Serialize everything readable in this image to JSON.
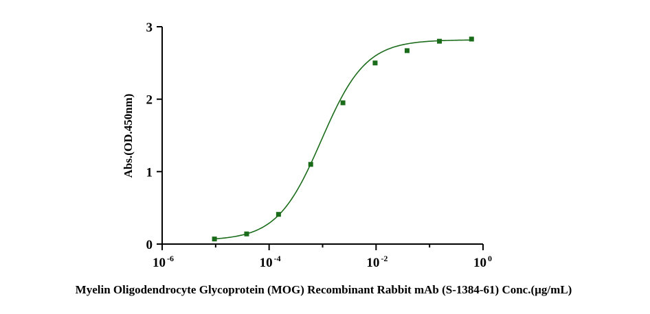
{
  "chart_data": {
    "type": "scatter",
    "xlabel": "Myelin Oligodendrocyte Glycoprotein (MOG) Recombinant Rabbit mAb (S-1384-61) Conc.(µg/mL)",
    "ylabel": "Abs.(OD.450nm)",
    "x_scale": "log10",
    "xlim": [
      1e-06,
      1
    ],
    "ylim": [
      0,
      3
    ],
    "x_ticks": [
      {
        "base": "10",
        "exp": "-6",
        "value": 1e-06
      },
      {
        "base": "10",
        "exp": "-4",
        "value": 0.0001
      },
      {
        "base": "10",
        "exp": "-2",
        "value": 0.01
      },
      {
        "base": "10",
        "exp": "0",
        "value": 1
      }
    ],
    "y_ticks": [
      {
        "label": "0",
        "value": 0
      },
      {
        "label": "1",
        "value": 1
      },
      {
        "label": "2",
        "value": 2
      },
      {
        "label": "3",
        "value": 3
      }
    ],
    "series": [
      {
        "color": "#1a6b1a",
        "marker": "square",
        "x": [
          9.5e-06,
          3.8e-05,
          0.00015,
          0.0006,
          0.0024,
          0.0096,
          0.038,
          0.153,
          0.61
        ],
        "y": [
          0.07,
          0.14,
          0.41,
          1.1,
          1.95,
          2.5,
          2.67,
          2.8,
          2.83
        ]
      }
    ],
    "fit_curve": {
      "type": "4PL",
      "color": "#1a6b1a",
      "bottom": 0.05,
      "top": 2.82,
      "ec50": 0.00095,
      "hill": 1.05
    },
    "grid": false,
    "legend": "none"
  }
}
